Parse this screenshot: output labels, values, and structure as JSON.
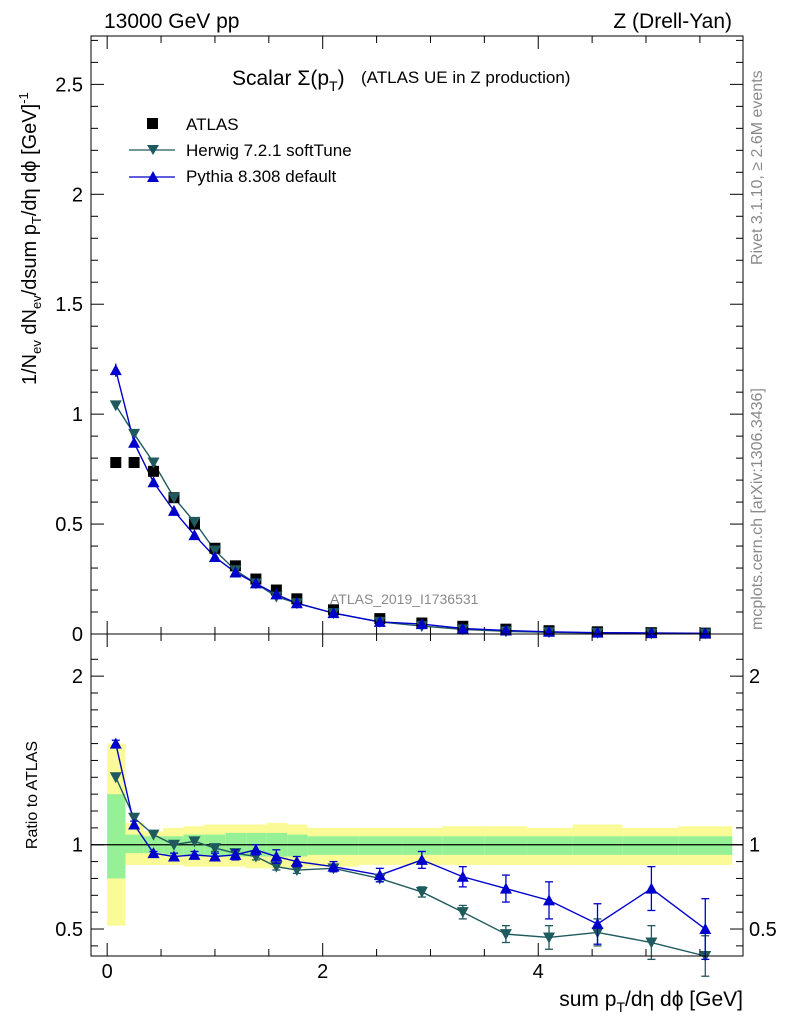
{
  "header": {
    "left": "13000 GeV pp",
    "right": "Z (Drell-Yan)"
  },
  "side_labels": {
    "rivet": "Rivet 3.1.10, ≥ 2.6M events",
    "mcplots": "mcplots.cern.ch [arXiv:1306.3436]"
  },
  "chart_data": [
    {
      "type": "scatter",
      "title_main": "Scalar Σ(p",
      "title_sub": "T",
      "title_close": ")",
      "title_note": "(ATLAS UE in Z production)",
      "watermark": "ATLAS_2019_I1736531",
      "ylabel": "1/N_ev dN_ev/dsum p_T/dη dϕ [GeV]^-1",
      "xlim": [
        -0.15,
        5.9
      ],
      "ylim": [
        0,
        2.72
      ],
      "y_ticks": [
        0,
        0.5,
        1,
        1.5,
        2,
        2.5
      ],
      "y_tick_labels": [
        "0",
        "0.5",
        "1",
        "1.5",
        "2",
        "2.5"
      ],
      "legend_placement": "top-left",
      "x": [
        0.08,
        0.25,
        0.43,
        0.62,
        0.81,
        1.0,
        1.19,
        1.38,
        1.57,
        1.76,
        2.1,
        2.53,
        2.92,
        3.3,
        3.7,
        4.1,
        4.55,
        5.05,
        5.55
      ],
      "series": [
        {
          "name": "ATLAS",
          "marker": "square",
          "color": "#000000",
          "values": [
            0.78,
            0.78,
            0.74,
            0.62,
            0.5,
            0.39,
            0.31,
            0.25,
            0.2,
            0.16,
            0.11,
            0.07,
            0.05,
            0.035,
            0.022,
            0.015,
            0.01,
            0.006,
            0.004
          ]
        },
        {
          "name": "Herwig 7.2.1 softTune",
          "marker": "triangle-down",
          "color": "#1f5a5e",
          "values": [
            1.04,
            0.91,
            0.78,
            0.62,
            0.51,
            0.38,
            0.29,
            0.23,
            0.17,
            0.14,
            0.095,
            0.055,
            0.036,
            0.021,
            0.012,
            0.008,
            0.005,
            0.003,
            0.002
          ]
        },
        {
          "name": "Pythia 8.308 default",
          "marker": "triangle-up",
          "color": "#0000cc",
          "values": [
            1.2,
            0.87,
            0.69,
            0.56,
            0.45,
            0.35,
            0.28,
            0.23,
            0.18,
            0.14,
            0.095,
            0.055,
            0.045,
            0.025,
            0.016,
            0.01,
            0.006,
            0.005,
            0.003
          ]
        }
      ]
    },
    {
      "type": "line",
      "ylabel": "Ratio to ATLAS",
      "xlabel": "sum p_T/dη dϕ [GeV]",
      "xlim": [
        -0.15,
        5.9
      ],
      "ylim": [
        0.34,
        2.25
      ],
      "x_ticks": [
        0,
        2,
        4
      ],
      "x_tick_labels": [
        "0",
        "2",
        "4"
      ],
      "y_ticks": [
        0.5,
        1,
        2
      ],
      "y_tick_labels": [
        "0.5",
        "1",
        "2"
      ],
      "reference_line": 1,
      "bin_edges": [
        0,
        0.17,
        0.34,
        0.52,
        0.71,
        0.9,
        1.1,
        1.29,
        1.48,
        1.67,
        1.86,
        2.33,
        2.74,
        3.11,
        3.5,
        3.9,
        4.32,
        4.78,
        5.3,
        5.8
      ],
      "band_yellow": [
        [
          0.52,
          1.6
        ],
        [
          0.88,
          1.13
        ],
        [
          0.88,
          1.08
        ],
        [
          0.88,
          1.1
        ],
        [
          0.87,
          1.11
        ],
        [
          0.87,
          1.12
        ],
        [
          0.87,
          1.12
        ],
        [
          0.86,
          1.12
        ],
        [
          0.86,
          1.13
        ],
        [
          0.86,
          1.12
        ],
        [
          0.87,
          1.1
        ],
        [
          0.88,
          1.1
        ],
        [
          0.88,
          1.1
        ],
        [
          0.88,
          1.11
        ],
        [
          0.88,
          1.11
        ],
        [
          0.88,
          1.1
        ],
        [
          0.88,
          1.12
        ],
        [
          0.88,
          1.1
        ],
        [
          0.88,
          1.11
        ]
      ],
      "band_green": [
        [
          0.8,
          1.3
        ],
        [
          0.95,
          1.06
        ],
        [
          0.95,
          1.05
        ],
        [
          0.94,
          1.05
        ],
        [
          0.93,
          1.06
        ],
        [
          0.93,
          1.06
        ],
        [
          0.93,
          1.07
        ],
        [
          0.93,
          1.07
        ],
        [
          0.93,
          1.07
        ],
        [
          0.93,
          1.06
        ],
        [
          0.94,
          1.05
        ],
        [
          0.94,
          1.05
        ],
        [
          0.94,
          1.05
        ],
        [
          0.94,
          1.05
        ],
        [
          0.94,
          1.05
        ],
        [
          0.94,
          1.05
        ],
        [
          0.94,
          1.05
        ],
        [
          0.94,
          1.05
        ],
        [
          0.94,
          1.05
        ]
      ],
      "series": [
        {
          "name": "Herwig 7.2.1 softTune",
          "marker": "triangle-down",
          "color": "#1f5a5e",
          "values": [
            1.4,
            1.16,
            1.06,
            1.0,
            1.02,
            0.98,
            0.95,
            0.93,
            0.87,
            0.85,
            0.86,
            0.8,
            0.72,
            0.6,
            0.47,
            0.45,
            0.48,
            0.42,
            0.34
          ],
          "errors": [
            0,
            0,
            0,
            0,
            0,
            0.02,
            0.02,
            0.02,
            0.02,
            0.02,
            0.02,
            0.02,
            0.03,
            0.04,
            0.05,
            0.07,
            0.08,
            0.1,
            0.12
          ]
        },
        {
          "name": "Pythia 8.308 default",
          "marker": "triangle-up",
          "color": "#0000cc",
          "values": [
            1.6,
            1.12,
            0.95,
            0.93,
            0.94,
            0.93,
            0.94,
            0.97,
            0.93,
            0.9,
            0.87,
            0.82,
            0.91,
            0.81,
            0.74,
            0.67,
            0.53,
            0.74,
            0.5
          ],
          "errors": [
            0.02,
            0.02,
            0.01,
            0.02,
            0.02,
            0.02,
            0.03,
            0.03,
            0.04,
            0.03,
            0.03,
            0.04,
            0.05,
            0.06,
            0.08,
            0.11,
            0.12,
            0.13,
            0.18
          ]
        }
      ]
    }
  ]
}
